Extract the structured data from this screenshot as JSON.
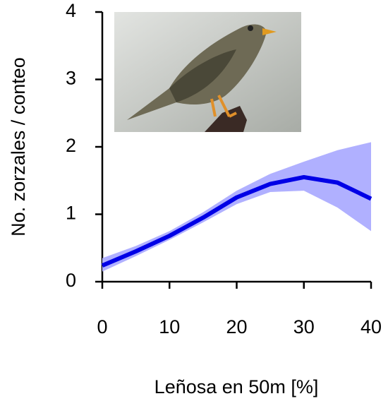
{
  "chart_data": {
    "type": "line",
    "x": [
      0,
      5,
      10,
      15,
      20,
      25,
      30,
      35,
      40
    ],
    "values": [
      0.24,
      0.45,
      0.68,
      0.95,
      1.25,
      1.45,
      1.55,
      1.47,
      1.23
    ],
    "lower": [
      0.15,
      0.38,
      0.62,
      0.88,
      1.15,
      1.33,
      1.35,
      1.1,
      0.75
    ],
    "upper": [
      0.35,
      0.53,
      0.75,
      1.03,
      1.35,
      1.6,
      1.78,
      1.95,
      2.07
    ],
    "color": "#0000e6",
    "band_color": "#b0b0ff",
    "xlim": [
      0,
      40
    ],
    "ylim": [
      0,
      4
    ],
    "xticks": [
      0,
      10,
      20,
      30,
      40
    ],
    "yticks": [
      0,
      1,
      2,
      3,
      4
    ],
    "xlabel": "Leñosa en 50m [%]",
    "ylabel": "No. zorzales / conteo"
  }
}
